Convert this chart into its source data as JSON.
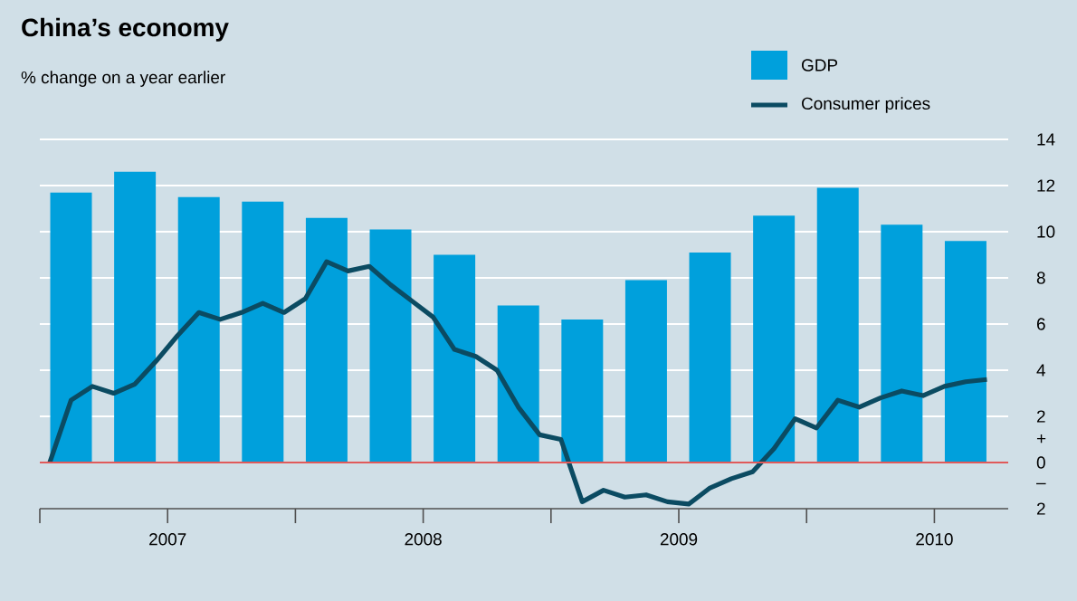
{
  "chart_data": {
    "type": "bar",
    "title": "China’s economy",
    "subtitle": "% change on a year earlier",
    "series": [
      {
        "name": "GDP",
        "color": "#00a0dc",
        "x": [
          "2007-02-15",
          "2007-05-15",
          "2007-08-15",
          "2007-11-15",
          "2008-02-15",
          "2008-05-15",
          "2008-08-15",
          "2008-11-15",
          "2009-02-15",
          "2009-05-15",
          "2009-08-15",
          "2009-11-15",
          "2010-02-15",
          "2010-05-15",
          "2010-08-15"
        ],
        "values": [
          11.7,
          12.6,
          11.5,
          11.3,
          10.6,
          10.1,
          9.0,
          6.8,
          6.2,
          7.9,
          9.1,
          10.7,
          11.9,
          10.3,
          9.6
        ]
      },
      {
        "name": "Consumer prices",
        "type": "line",
        "color": "#0b4b62",
        "line_style": "solid",
        "x": [
          "2007-01-15",
          "2007-02-15",
          "2007-03-15",
          "2007-04-15",
          "2007-05-15",
          "2007-06-15",
          "2007-07-15",
          "2007-08-15",
          "2007-09-15",
          "2007-10-15",
          "2007-11-15",
          "2007-12-15",
          "2008-01-15",
          "2008-02-15",
          "2008-03-15",
          "2008-04-15",
          "2008-05-15",
          "2008-06-15",
          "2008-07-15",
          "2008-08-15",
          "2008-09-15",
          "2008-10-15",
          "2008-11-15",
          "2008-12-15",
          "2009-01-15",
          "2009-02-15",
          "2009-03-15",
          "2009-04-15",
          "2009-05-15",
          "2009-06-15",
          "2009-07-15",
          "2009-08-15",
          "2009-09-15",
          "2009-10-15",
          "2009-11-15",
          "2009-12-15",
          "2010-01-15",
          "2010-02-15",
          "2010-03-15",
          "2010-04-15",
          "2010-05-15",
          "2010-06-15",
          "2010-07-15",
          "2010-08-15",
          "2010-09-15"
        ],
        "values": [
          0,
          2.7,
          3.3,
          3.0,
          3.4,
          4.4,
          5.5,
          6.5,
          6.2,
          6.5,
          6.9,
          6.5,
          7.1,
          8.7,
          8.3,
          8.5,
          7.7,
          7.0,
          6.3,
          4.9,
          4.6,
          4.0,
          2.4,
          1.2,
          1.0,
          -1.7,
          -1.2,
          -1.5,
          -1.4,
          -1.7,
          -1.8,
          -1.1,
          -0.7,
          -0.4,
          0.6,
          1.9,
          1.5,
          2.7,
          2.4,
          2.8,
          3.1,
          2.9,
          3.3,
          3.5,
          3.6
        ]
      }
    ],
    "xlim": [
      "2007-01-01",
      "2010-10-15"
    ],
    "xticks": [
      {
        "value": "2007-01-01",
        "label": null
      },
      {
        "value": "2008-01-01",
        "label": null
      },
      {
        "value": "2009-01-01",
        "label": null
      },
      {
        "value": "2010-01-01",
        "label": null
      },
      {
        "value": "2007-07-01",
        "label": "2007"
      },
      {
        "value": "2008-07-01",
        "label": "2008"
      },
      {
        "value": "2009-07-01",
        "label": "2009"
      },
      {
        "value": "2010-07-01",
        "label": "2010"
      }
    ],
    "ylim": [
      -2,
      14
    ],
    "yticks": [
      14,
      12,
      10,
      8,
      6,
      4,
      2,
      0,
      {
        "value": 1,
        "label": "+"
      },
      {
        "value": -1,
        "label": "–"
      },
      {
        "value": -2,
        "label": "2"
      }
    ],
    "ref_lines": [
      {
        "axis": "y",
        "value": 0,
        "color": "#e05a5a"
      }
    ],
    "grid": "y",
    "legend": "top right"
  }
}
